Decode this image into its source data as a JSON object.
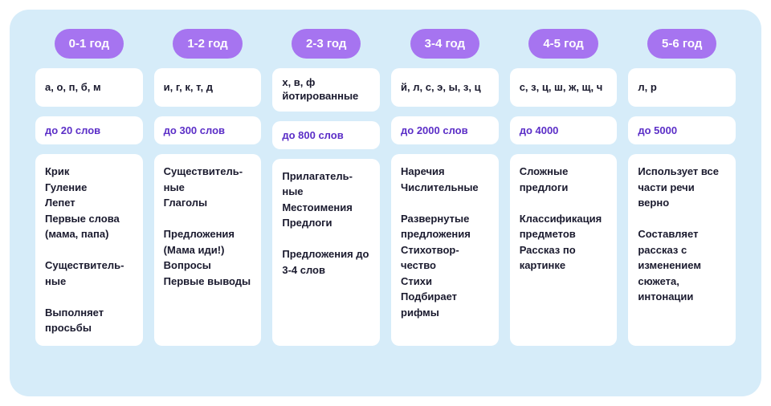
{
  "columns": [
    {
      "age": "0-1 год",
      "sounds": "а, о, п, б, м",
      "words": "до 20 слов",
      "details": "Крик\nГуление\nЛепет\nПервые слова (мама, папа)\n\nСуществитель-\nные\n\nВыполняет просьбы"
    },
    {
      "age": "1-2 год",
      "sounds": "и, г, к, т, д",
      "words": "до 300 слов",
      "details": "Существитель-\nные\nГлаголы\n\nПредложения (Мама иди!)\nВопросы\nПервые выводы"
    },
    {
      "age": "2-3 год",
      "sounds": "х, в, ф\nйотированные",
      "words": "до 800 слов",
      "details": "Прилагатель-\nные\nМестоимения\nПредлоги\n\nПредложения до 3-4 слов"
    },
    {
      "age": "3-4 год",
      "sounds": "й, л, с, э, ы, з, ц",
      "words": "до 2000 слов",
      "details": "Наречия\nЧислительные\n\nРазвернутые предложения\nСтихотвор-\nчество\nСтихи\nПодбирает рифмы"
    },
    {
      "age": "4-5 год",
      "sounds": "с, з, ц, ш, ж, щ, ч",
      "words": "до 4000",
      "details": "Сложные предлоги\n\nКлассификация предметов\nРассказ по картинке"
    },
    {
      "age": "5-6 год",
      "sounds": "л, р",
      "words": "до 5000",
      "details": "Использует все части речи верно\n\nСоставляет рассказ с изменением сюжета, интонации"
    }
  ],
  "styling": {
    "container_bg": "#d6ecf9",
    "pill_bg": "#a674f0",
    "pill_color": "#ffffff",
    "box_bg": "#ffffff",
    "words_color": "#5b2ec7",
    "text_color": "#1a1a2e",
    "container_radius": 24,
    "box_radius": 10
  }
}
